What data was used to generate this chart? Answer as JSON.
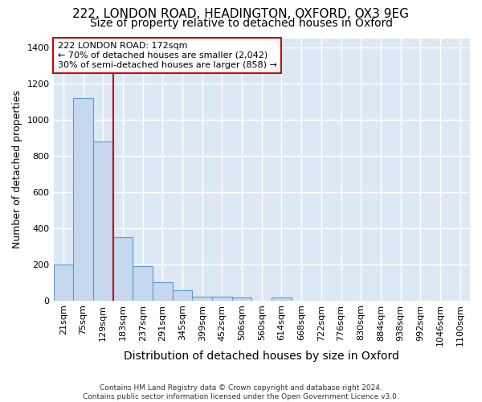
{
  "title1": "222, LONDON ROAD, HEADINGTON, OXFORD, OX3 9EG",
  "title2": "Size of property relative to detached houses in Oxford",
  "xlabel": "Distribution of detached houses by size in Oxford",
  "ylabel": "Number of detached properties",
  "footnote": "Contains HM Land Registry data © Crown copyright and database right 2024.\nContains public sector information licensed under the Open Government Licence v3.0.",
  "categories": [
    "21sqm",
    "75sqm",
    "129sqm",
    "183sqm",
    "237sqm",
    "291sqm",
    "345sqm",
    "399sqm",
    "452sqm",
    "506sqm",
    "560sqm",
    "614sqm",
    "668sqm",
    "722sqm",
    "776sqm",
    "830sqm",
    "884sqm",
    "938sqm",
    "992sqm",
    "1046sqm",
    "1100sqm"
  ],
  "values": [
    200,
    1118,
    880,
    350,
    190,
    100,
    55,
    20,
    20,
    15,
    0,
    15,
    0,
    0,
    0,
    0,
    0,
    0,
    0,
    0,
    0
  ],
  "bar_color": "#c5d8ed",
  "bar_edge_color": "#5b9bd5",
  "plot_bg_color": "#dce9f5",
  "figure_bg_color": "#ffffff",
  "grid_color": "#ffffff",
  "vline_color": "#cc0000",
  "vline_x": 3.0,
  "annotation_text": "222 LONDON ROAD: 172sqm\n← 70% of detached houses are smaller (2,042)\n30% of semi-detached houses are larger (858) →",
  "annotation_box_facecolor": "#ffffff",
  "annotation_box_edgecolor": "#cc0000",
  "ylim": [
    0,
    1450
  ],
  "yticks": [
    0,
    200,
    400,
    600,
    800,
    1000,
    1200,
    1400
  ],
  "title1_fontsize": 11,
  "title2_fontsize": 10,
  "xlabel_fontsize": 10,
  "ylabel_fontsize": 9,
  "tick_fontsize": 8,
  "footnote_fontsize": 6.5
}
